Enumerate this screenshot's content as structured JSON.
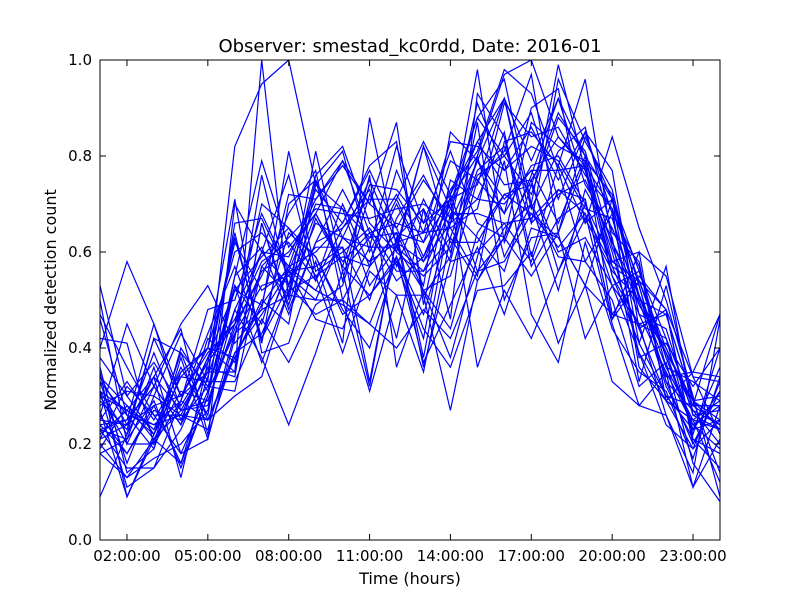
{
  "chart_data": {
    "type": "line",
    "title": "Observer: smestad_kc0rdd, Date: 2016-01",
    "xlabel": "Time (hours)",
    "ylabel": "Normalized detection count",
    "xlim": [
      1,
      24
    ],
    "ylim": [
      0,
      1
    ],
    "x": [
      1,
      2,
      3,
      4,
      5,
      6,
      7,
      8,
      9,
      10,
      11,
      12,
      13,
      14,
      15,
      16,
      17,
      18,
      19,
      20,
      21,
      22,
      23,
      24
    ],
    "x_ticks": [
      2,
      5,
      8,
      11,
      14,
      17,
      20,
      23
    ],
    "x_tick_labels": [
      "02:00:00",
      "05:00:00",
      "08:00:00",
      "11:00:00",
      "14:00:00",
      "17:00:00",
      "20:00:00",
      "23:00:00"
    ],
    "y_ticks": [
      0.0,
      0.2,
      0.4,
      0.6,
      0.8,
      1.0
    ],
    "y_tick_labels": [
      "0.0",
      "0.2",
      "0.4",
      "0.6",
      "0.8",
      "1.0"
    ],
    "grid": false,
    "legend": "none",
    "line_color": "#0000ff",
    "series": [
      {
        "values": [
          0.53,
          0.3,
          0.22,
          0.34,
          0.33,
          0.82,
          0.95,
          1.0,
          0.74,
          0.81,
          0.6,
          0.71,
          0.59,
          0.7,
          0.88,
          0.96,
          0.7,
          0.99,
          0.77,
          0.55,
          0.41,
          0.3,
          0.23,
          0.25
        ]
      },
      {
        "values": [
          0.4,
          0.58,
          0.45,
          0.27,
          0.29,
          0.45,
          0.55,
          0.68,
          0.77,
          0.5,
          0.61,
          0.82,
          0.66,
          0.71,
          0.8,
          0.97,
          1.0,
          0.84,
          0.77,
          0.6,
          0.39,
          0.24,
          0.19,
          0.25
        ]
      },
      {
        "values": [
          0.35,
          0.09,
          0.22,
          0.34,
          0.4,
          0.38,
          0.49,
          0.57,
          0.73,
          0.66,
          0.77,
          0.65,
          0.75,
          0.67,
          0.98,
          0.62,
          0.76,
          0.92,
          0.8,
          0.71,
          0.53,
          0.33,
          0.2,
          0.31
        ]
      },
      {
        "values": [
          0.24,
          0.18,
          0.28,
          0.16,
          0.3,
          0.55,
          0.79,
          0.61,
          0.68,
          0.79,
          0.7,
          0.87,
          0.49,
          0.75,
          0.71,
          0.85,
          0.59,
          0.78,
          0.66,
          0.84,
          0.65,
          0.5,
          0.3,
          0.09
        ]
      },
      {
        "values": [
          0.31,
          0.22,
          0.42,
          0.3,
          0.4,
          0.71,
          0.39,
          0.41,
          0.58,
          0.41,
          0.88,
          0.61,
          0.56,
          0.63,
          0.79,
          0.68,
          0.9,
          0.94,
          0.66,
          0.71,
          0.56,
          0.42,
          0.22,
          0.4
        ]
      },
      {
        "values": [
          0.23,
          0.25,
          0.32,
          0.45,
          0.53,
          0.41,
          0.48,
          0.51,
          0.81,
          0.56,
          0.63,
          0.64,
          0.52,
          0.55,
          0.75,
          0.81,
          0.97,
          0.64,
          0.79,
          0.72,
          0.47,
          0.35,
          0.24,
          0.19
        ]
      },
      {
        "values": [
          0.26,
          0.45,
          0.32,
          0.24,
          0.35,
          0.64,
          0.41,
          0.7,
          0.75,
          0.63,
          0.75,
          0.62,
          0.64,
          0.65,
          0.55,
          0.83,
          0.85,
          0.78,
          0.96,
          0.62,
          0.51,
          0.36,
          0.33,
          0.29
        ]
      },
      {
        "values": [
          0.2,
          0.13,
          0.17,
          0.2,
          0.27,
          0.53,
          0.37,
          0.52,
          0.66,
          0.63,
          0.58,
          0.7,
          0.58,
          0.66,
          0.79,
          0.92,
          0.66,
          0.72,
          0.75,
          0.62,
          0.49,
          0.4,
          0.27,
          0.24
        ]
      },
      {
        "values": [
          0.3,
          0.27,
          0.22,
          0.39,
          0.32,
          0.48,
          0.6,
          0.76,
          0.54,
          0.65,
          0.71,
          0.71,
          0.83,
          0.72,
          0.83,
          0.92,
          0.69,
          0.81,
          0.86,
          0.64,
          0.58,
          0.29,
          0.19,
          0.33
        ]
      },
      {
        "values": [
          0.47,
          0.36,
          0.26,
          0.26,
          0.25,
          0.3,
          0.34,
          0.52,
          0.55,
          0.59,
          0.57,
          0.64,
          0.62,
          0.79,
          0.75,
          0.68,
          0.78,
          0.8,
          0.7,
          0.53,
          0.56,
          0.38,
          0.23,
          0.36
        ]
      },
      {
        "values": [
          0.18,
          0.21,
          0.36,
          0.18,
          0.21,
          0.7,
          0.6,
          0.59,
          0.71,
          0.78,
          0.7,
          0.65,
          0.53,
          0.85,
          0.79,
          0.71,
          0.77,
          0.77,
          0.58,
          0.68,
          0.38,
          0.41,
          0.32,
          0.4
        ]
      },
      {
        "values": [
          0.09,
          0.22,
          0.34,
          0.13,
          0.37,
          0.63,
          0.42,
          0.57,
          0.6,
          0.66,
          0.78,
          0.83,
          0.51,
          0.59,
          0.87,
          0.5,
          0.63,
          0.64,
          0.84,
          0.71,
          0.51,
          0.34,
          0.35,
          0.34
        ]
      },
      {
        "values": [
          0.28,
          0.31,
          0.3,
          0.43,
          0.33,
          0.33,
          0.46,
          0.37,
          0.49,
          0.53,
          0.72,
          0.6,
          0.82,
          0.62,
          0.62,
          0.72,
          0.74,
          0.89,
          0.8,
          0.55,
          0.45,
          0.47,
          0.29,
          0.23
        ]
      },
      {
        "values": [
          0.25,
          0.33,
          0.25,
          0.35,
          0.4,
          0.35,
          0.66,
          0.48,
          0.62,
          0.73,
          0.62,
          0.42,
          0.69,
          0.46,
          0.93,
          0.84,
          0.57,
          0.67,
          0.71,
          0.46,
          0.6,
          0.29,
          0.35,
          0.47
        ]
      },
      {
        "values": [
          0.22,
          0.27,
          0.24,
          0.29,
          0.43,
          0.57,
          0.42,
          0.53,
          0.76,
          0.82,
          0.66,
          0.6,
          0.55,
          0.61,
          0.77,
          0.82,
          0.66,
          0.96,
          0.83,
          0.73,
          0.5,
          0.47,
          0.29,
          0.25
        ]
      },
      {
        "values": [
          0.21,
          0.24,
          0.39,
          0.25,
          0.38,
          0.46,
          0.58,
          0.62,
          0.54,
          0.7,
          0.57,
          0.77,
          0.64,
          0.72,
          0.88,
          0.8,
          0.89,
          0.71,
          0.85,
          0.77,
          0.44,
          0.3,
          0.28,
          0.24
        ]
      },
      {
        "values": [
          0.33,
          0.26,
          0.19,
          0.38,
          0.21,
          0.42,
          0.76,
          0.53,
          0.68,
          0.57,
          0.74,
          0.73,
          0.66,
          0.81,
          0.66,
          0.63,
          0.87,
          0.82,
          0.79,
          0.47,
          0.55,
          0.48,
          0.21,
          0.15
        ]
      },
      {
        "values": [
          0.33,
          0.16,
          0.3,
          0.26,
          0.38,
          0.52,
          0.49,
          0.72,
          0.71,
          0.79,
          0.64,
          0.54,
          0.59,
          0.73,
          0.81,
          0.98,
          0.93,
          0.77,
          0.78,
          0.57,
          0.44,
          0.48,
          0.34,
          0.33
        ]
      },
      {
        "values": [
          0.42,
          0.41,
          0.2,
          0.29,
          0.48,
          0.5,
          0.68,
          0.56,
          0.52,
          0.63,
          0.61,
          0.61,
          0.82,
          0.69,
          0.83,
          0.74,
          0.75,
          0.84,
          0.78,
          0.69,
          0.36,
          0.29,
          0.25,
          0.23
        ]
      },
      {
        "values": [
          0.29,
          0.23,
          0.42,
          0.39,
          0.25,
          0.39,
          0.47,
          0.56,
          0.57,
          0.61,
          0.5,
          0.67,
          0.76,
          0.65,
          0.69,
          0.91,
          0.84,
          0.86,
          0.76,
          0.69,
          0.54,
          0.4,
          0.28,
          0.28
        ]
      },
      {
        "values": [
          0.34,
          0.28,
          0.21,
          0.31,
          0.29,
          0.44,
          0.56,
          0.6,
          0.68,
          0.58,
          0.64,
          0.66,
          0.64,
          0.83,
          0.82,
          0.77,
          0.86,
          0.75,
          0.85,
          0.68,
          0.57,
          0.36,
          0.25,
          0.29
        ]
      },
      {
        "values": [
          0.5,
          0.2,
          0.32,
          0.24,
          0.42,
          0.37,
          0.57,
          0.63,
          0.69,
          0.68,
          0.67,
          0.69,
          0.7,
          0.66,
          0.91,
          0.77,
          0.82,
          0.79,
          0.69,
          0.67,
          0.49,
          0.39,
          0.23,
          0.31
        ]
      },
      {
        "values": [
          0.38,
          0.3,
          0.37,
          0.28,
          0.37,
          0.62,
          0.52,
          0.56,
          0.7,
          0.69,
          0.63,
          0.72,
          0.62,
          0.71,
          0.74,
          0.92,
          0.79,
          0.92,
          0.74,
          0.65,
          0.51,
          0.39,
          0.29,
          0.3
        ]
      },
      {
        "values": [
          0.19,
          0.28,
          0.23,
          0.36,
          0.26,
          0.55,
          0.61,
          0.47,
          0.62,
          0.65,
          0.73,
          0.57,
          0.71,
          0.6,
          0.76,
          0.8,
          0.72,
          0.88,
          0.81,
          0.61,
          0.47,
          0.44,
          0.26,
          0.27
        ]
      },
      {
        "values": [
          0.24,
          0.25,
          0.45,
          0.3,
          0.35,
          0.35,
          1.0,
          0.5,
          0.75,
          0.54,
          0.76,
          0.36,
          0.52,
          0.44,
          0.64,
          0.72,
          0.68,
          0.61,
          0.68,
          0.45,
          0.28,
          0.35,
          0.11,
          0.28
        ]
      },
      {
        "values": [
          0.3,
          0.2,
          0.2,
          0.4,
          0.31,
          0.43,
          0.48,
          0.81,
          0.56,
          0.6,
          0.65,
          0.56,
          0.56,
          0.69,
          0.63,
          0.56,
          0.74,
          0.6,
          0.63,
          0.53,
          0.45,
          0.42,
          0.28,
          0.47
        ]
      },
      {
        "values": [
          0.23,
          0.21,
          0.29,
          0.15,
          0.3,
          0.66,
          0.67,
          0.55,
          0.61,
          0.61,
          0.33,
          0.63,
          0.69,
          0.58,
          0.6,
          0.66,
          0.67,
          0.73,
          0.71,
          0.46,
          0.54,
          0.48,
          0.2,
          0.31
        ]
      },
      {
        "values": [
          0.31,
          0.27,
          0.34,
          0.44,
          0.22,
          0.39,
          0.43,
          0.56,
          0.46,
          0.44,
          0.57,
          0.64,
          0.38,
          0.68,
          0.68,
          0.66,
          0.58,
          0.73,
          0.68,
          0.57,
          0.53,
          0.33,
          0.27,
          0.2
        ]
      },
      {
        "values": [
          0.23,
          0.15,
          0.15,
          0.23,
          0.36,
          0.34,
          0.66,
          0.49,
          0.67,
          0.57,
          0.51,
          0.58,
          0.42,
          0.72,
          0.56,
          0.58,
          0.68,
          0.63,
          0.53,
          0.71,
          0.41,
          0.57,
          0.26,
          0.23
        ]
      },
      {
        "values": [
          0.26,
          0.18,
          0.27,
          0.25,
          0.32,
          0.31,
          0.57,
          0.51,
          0.5,
          0.5,
          0.45,
          0.4,
          0.48,
          0.42,
          0.56,
          0.63,
          0.75,
          0.56,
          0.67,
          0.56,
          0.5,
          0.32,
          0.21,
          0.18
        ]
      },
      {
        "values": [
          0.18,
          0.13,
          0.21,
          0.27,
          0.28,
          0.48,
          0.38,
          0.24,
          0.39,
          0.56,
          0.32,
          0.63,
          0.36,
          0.58,
          0.8,
          0.59,
          0.7,
          0.52,
          0.73,
          0.63,
          0.33,
          0.53,
          0.29,
          0.14
        ]
      },
      {
        "values": [
          0.25,
          0.24,
          0.28,
          0.3,
          0.39,
          0.45,
          0.6,
          0.53,
          0.47,
          0.5,
          0.31,
          0.51,
          0.35,
          0.63,
          0.54,
          0.65,
          0.7,
          0.59,
          0.58,
          0.5,
          0.32,
          0.37,
          0.16,
          0.08
        ]
      },
      {
        "values": [
          0.21,
          0.32,
          0.26,
          0.18,
          0.31,
          0.53,
          0.45,
          0.64,
          0.59,
          0.48,
          0.4,
          0.59,
          0.37,
          0.49,
          0.61,
          0.47,
          0.65,
          0.63,
          0.53,
          0.33,
          0.28,
          0.26,
          0.11,
          0.21
        ]
      },
      {
        "values": [
          0.31,
          0.11,
          0.15,
          0.29,
          0.25,
          0.38,
          0.5,
          0.45,
          0.74,
          0.69,
          0.53,
          0.61,
          0.52,
          0.38,
          0.59,
          0.79,
          0.47,
          0.37,
          0.62,
          0.44,
          0.35,
          0.31,
          0.17,
          0.34
        ]
      },
      {
        "values": [
          0.36,
          0.14,
          0.19,
          0.35,
          0.4,
          0.6,
          0.64,
          0.57,
          0.52,
          0.49,
          0.45,
          0.59,
          0.44,
          0.36,
          0.52,
          0.53,
          0.6,
          0.41,
          0.53,
          0.47,
          0.45,
          0.26,
          0.14,
          0.46
        ]
      },
      {
        "values": [
          0.46,
          0.26,
          0.24,
          0.26,
          0.23,
          0.43,
          0.53,
          0.55,
          0.5,
          0.63,
          0.58,
          0.62,
          0.58,
          0.71,
          0.36,
          0.52,
          0.42,
          0.56,
          0.7,
          0.58,
          0.6,
          0.55,
          0.34,
          0.22
        ]
      },
      {
        "values": [
          0.27,
          0.09,
          0.21,
          0.16,
          0.34,
          0.52,
          0.59,
          0.65,
          0.55,
          0.39,
          0.56,
          0.51,
          0.51,
          0.27,
          0.54,
          0.63,
          0.55,
          0.64,
          0.42,
          0.53,
          0.39,
          0.29,
          0.25,
          0.12
        ]
      },
      {
        "values": [
          0.34,
          0.24,
          0.34,
          0.27,
          0.37,
          0.45,
          0.7,
          0.65,
          0.59,
          0.47,
          0.51,
          0.59,
          0.47,
          0.66,
          0.71,
          0.7,
          0.77,
          0.66,
          0.8,
          0.58,
          0.54,
          0.38,
          0.24,
          0.28
        ]
      }
    ]
  }
}
